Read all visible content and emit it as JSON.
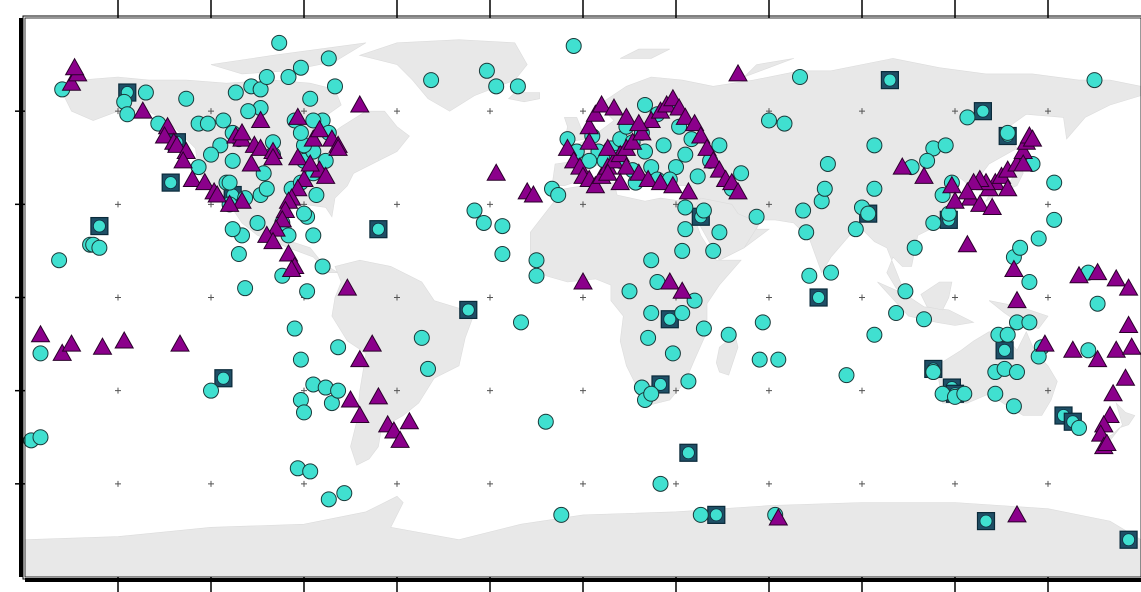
{
  "map": {
    "projection": "plate-carree",
    "lon_range": [
      -180,
      180
    ],
    "lat_range": [
      -90,
      90
    ],
    "graticule_step_deg": 30,
    "land_color": "#e8e8e8",
    "ocean_color": "#ffffff",
    "frame_color": "#000000"
  },
  "symbols": {
    "circle": {
      "fill": "#40e0d0",
      "stroke": "#1a3a3a"
    },
    "triangle": {
      "fill": "#8b008b",
      "stroke": "#2a002a"
    },
    "square": {
      "fill": "#40e0d0",
      "box_stroke": "#0a2a3a"
    }
  },
  "stations": {
    "circles": [
      [
        -148,
        63
      ],
      [
        -147,
        59
      ],
      [
        -141,
        66
      ],
      [
        -137,
        56
      ],
      [
        -128,
        64
      ],
      [
        -124,
        56
      ],
      [
        -121,
        56
      ],
      [
        -116,
        57
      ],
      [
        -112,
        66
      ],
      [
        -107,
        68
      ],
      [
        -104,
        67
      ],
      [
        -102,
        71
      ],
      [
        -98,
        82
      ],
      [
        -104,
        61
      ],
      [
        -108,
        60
      ],
      [
        -111,
        51
      ],
      [
        -113,
        53
      ],
      [
        -117,
        49
      ],
      [
        -124,
        42
      ],
      [
        -120,
        46
      ],
      [
        -91,
        74
      ],
      [
        -95,
        71
      ],
      [
        -82,
        77
      ],
      [
        -84,
        57
      ],
      [
        -90,
        44
      ],
      [
        -103,
        40
      ],
      [
        -104,
        33
      ],
      [
        -105,
        24
      ],
      [
        -97,
        24
      ],
      [
        -95,
        20
      ],
      [
        -89,
        26
      ],
      [
        -87,
        20
      ],
      [
        -113,
        44
      ],
      [
        -102,
        35
      ],
      [
        -109,
        32
      ],
      [
        -110,
        20
      ],
      [
        -114,
        30
      ],
      [
        -115,
        37
      ],
      [
        -94,
        35
      ],
      [
        -91,
        37
      ],
      [
        -87,
        47
      ],
      [
        -87,
        57
      ],
      [
        -88,
        64
      ],
      [
        -93,
        57
      ],
      [
        -90,
        49
      ],
      [
        -91,
        53
      ],
      [
        -100,
        46
      ],
      [
        -100,
        50
      ],
      [
        -80,
        68
      ],
      [
        -82,
        53
      ],
      [
        -86,
        33
      ],
      [
        -87,
        40
      ],
      [
        -83,
        44
      ],
      [
        -90,
        27
      ],
      [
        -113,
        22
      ],
      [
        -111,
        14
      ],
      [
        -109,
        3
      ],
      [
        -89,
        2
      ],
      [
        -84,
        10
      ],
      [
        -97,
        7
      ],
      [
        -93,
        -10
      ],
      [
        -91,
        -20
      ],
      [
        -87,
        -28
      ],
      [
        -83,
        -29
      ],
      [
        -81,
        -34
      ],
      [
        -79,
        -16
      ],
      [
        -79,
        -30
      ],
      [
        -91,
        -33
      ],
      [
        -90,
        -37
      ],
      [
        -92,
        -55
      ],
      [
        -88,
        -56
      ],
      [
        -82,
        -65
      ],
      [
        -77,
        -63
      ],
      [
        -52,
        -13
      ],
      [
        -50,
        -23
      ],
      [
        -169,
        12
      ],
      [
        -159,
        17
      ],
      [
        -158,
        17
      ],
      [
        -156,
        16
      ],
      [
        -178,
        -46
      ],
      [
        -175,
        -18
      ],
      [
        -168,
        67
      ],
      [
        -49,
        70
      ],
      [
        -31,
        73
      ],
      [
        -28,
        68
      ],
      [
        -21,
        68
      ],
      [
        -35,
        28
      ],
      [
        -32,
        24
      ],
      [
        -26,
        23
      ],
      [
        -26,
        14
      ],
      [
        -15,
        12
      ],
      [
        -15,
        7
      ],
      [
        -20,
        -8
      ],
      [
        -12,
        -40
      ],
      [
        -7,
        -70
      ],
      [
        -3,
        81
      ],
      [
        -5,
        51
      ],
      [
        -2,
        47
      ],
      [
        -10,
        35
      ],
      [
        -8,
        33
      ],
      [
        3,
        52
      ],
      [
        5,
        47
      ],
      [
        2,
        44
      ],
      [
        7,
        44
      ],
      [
        9,
        48
      ],
      [
        11,
        45
      ],
      [
        12,
        51
      ],
      [
        14,
        55
      ],
      [
        12,
        44
      ],
      [
        16,
        50
      ],
      [
        19,
        53
      ],
      [
        20,
        47
      ],
      [
        16,
        41
      ],
      [
        22,
        42
      ],
      [
        24,
        38
      ],
      [
        17,
        37
      ],
      [
        20,
        62
      ],
      [
        24,
        59
      ],
      [
        29,
        62
      ],
      [
        31,
        55
      ],
      [
        26,
        49
      ],
      [
        33,
        46
      ],
      [
        30,
        42
      ],
      [
        28,
        38
      ],
      [
        37,
        39
      ],
      [
        35,
        51
      ],
      [
        44,
        49
      ],
      [
        41,
        44
      ],
      [
        51,
        40
      ],
      [
        48,
        35
      ],
      [
        33,
        29
      ],
      [
        39,
        28
      ],
      [
        56,
        26
      ],
      [
        44,
        21
      ],
      [
        42,
        15
      ],
      [
        33,
        22
      ],
      [
        32,
        15
      ],
      [
        22,
        12
      ],
      [
        15,
        2
      ],
      [
        24,
        5
      ],
      [
        36,
        -1
      ],
      [
        32,
        -5
      ],
      [
        22,
        -5
      ],
      [
        21,
        -13
      ],
      [
        29,
        -18
      ],
      [
        39,
        -10
      ],
      [
        34,
        -27
      ],
      [
        19,
        -29
      ],
      [
        20,
        -33
      ],
      [
        22,
        -31
      ],
      [
        57,
        -20
      ],
      [
        47,
        -12
      ],
      [
        58,
        -8
      ],
      [
        63,
        -20
      ],
      [
        73,
        7
      ],
      [
        80,
        8
      ],
      [
        72,
        21
      ],
      [
        71,
        28
      ],
      [
        77,
        31
      ],
      [
        78,
        35
      ],
      [
        90,
        29
      ],
      [
        92,
        27
      ],
      [
        88,
        22
      ],
      [
        94,
        35
      ],
      [
        60,
        57
      ],
      [
        70,
        71
      ],
      [
        65,
        56
      ],
      [
        79,
        43
      ],
      [
        94,
        49
      ],
      [
        106,
        42
      ],
      [
        113,
        48
      ],
      [
        117,
        49
      ],
      [
        111,
        44
      ],
      [
        116,
        33
      ],
      [
        119,
        37
      ],
      [
        118,
        27
      ],
      [
        113,
        24
      ],
      [
        107,
        16
      ],
      [
        104,
        2
      ],
      [
        101,
        -5
      ],
      [
        110,
        -7
      ],
      [
        113,
        -24
      ],
      [
        116,
        -31
      ],
      [
        120,
        -32
      ],
      [
        123,
        -31
      ],
      [
        133,
        -24
      ],
      [
        136,
        -23
      ],
      [
        134,
        -12
      ],
      [
        137,
        -12
      ],
      [
        133,
        -31
      ],
      [
        140,
        -24
      ],
      [
        139,
        -35
      ],
      [
        148,
        -16
      ],
      [
        147,
        -19
      ],
      [
        140,
        -8
      ],
      [
        144,
        -8
      ],
      [
        160,
        -42
      ],
      [
        163,
        -17
      ],
      [
        163,
        8
      ],
      [
        144,
        5
      ],
      [
        139,
        13
      ],
      [
        141,
        16
      ],
      [
        147,
        19
      ],
      [
        152,
        25
      ],
      [
        166,
        -2
      ],
      [
        165,
        70
      ],
      [
        152,
        37
      ],
      [
        145,
        43
      ],
      [
        137,
        53
      ],
      [
        124,
        58
      ],
      [
        94,
        -12
      ],
      [
        85,
        -25
      ],
      [
        -175,
        -45
      ],
      [
        -120,
        -30
      ],
      [
        25,
        -60
      ],
      [
        62,
        -70
      ],
      [
        38,
        -70
      ],
      [
        -114,
        37
      ]
    ],
    "triangles": [
      [
        -165,
        69
      ],
      [
        -163,
        72
      ],
      [
        -164,
        74
      ],
      [
        -142,
        60
      ],
      [
        -134,
        55
      ],
      [
        -135,
        52
      ],
      [
        -132,
        50
      ],
      [
        -131,
        49
      ],
      [
        -128,
        47
      ],
      [
        -129,
        44
      ],
      [
        -126,
        38
      ],
      [
        -122,
        37
      ],
      [
        -119,
        34
      ],
      [
        -118,
        33
      ],
      [
        -112,
        52
      ],
      [
        -110,
        51
      ],
      [
        -106,
        49
      ],
      [
        -104,
        48
      ],
      [
        -100,
        47
      ],
      [
        -92,
        58
      ],
      [
        -87,
        51
      ],
      [
        -85,
        54
      ],
      [
        -81,
        51
      ],
      [
        -79,
        49
      ],
      [
        -85,
        41
      ],
      [
        -83,
        39
      ],
      [
        -90,
        38
      ],
      [
        -92,
        35
      ],
      [
        -94,
        32
      ],
      [
        -95,
        31
      ],
      [
        -96,
        28
      ],
      [
        -97,
        25
      ],
      [
        -99,
        22
      ],
      [
        -102,
        20
      ],
      [
        -100,
        18
      ],
      [
        -95,
        14
      ],
      [
        -93,
        10
      ],
      [
        -94,
        9
      ],
      [
        -110,
        31
      ],
      [
        -114,
        30
      ],
      [
        -79,
        48
      ],
      [
        -72,
        62
      ],
      [
        -104,
        57
      ],
      [
        -110,
        53
      ],
      [
        -100,
        45
      ],
      [
        -107,
        43
      ],
      [
        -92,
        45
      ],
      [
        -88,
        43
      ],
      [
        -76,
        3
      ],
      [
        -68,
        -15
      ],
      [
        -66,
        -32
      ],
      [
        -63,
        -41
      ],
      [
        -61,
        -43
      ],
      [
        -59,
        -46
      ],
      [
        -56,
        -40
      ],
      [
        -75,
        -33
      ],
      [
        -72,
        -38
      ],
      [
        -72,
        -20
      ],
      [
        -28,
        40
      ],
      [
        -18,
        34
      ],
      [
        -16,
        33
      ],
      [
        -5,
        48
      ],
      [
        -3,
        44
      ],
      [
        -1,
        42
      ],
      [
        0,
        39
      ],
      [
        2,
        38
      ],
      [
        4,
        36
      ],
      [
        6,
        39
      ],
      [
        8,
        42
      ],
      [
        10,
        44
      ],
      [
        12,
        46
      ],
      [
        14,
        48
      ],
      [
        16,
        50
      ],
      [
        19,
        53
      ],
      [
        22,
        57
      ],
      [
        25,
        60
      ],
      [
        27,
        62
      ],
      [
        29,
        64
      ],
      [
        31,
        61
      ],
      [
        33,
        58
      ],
      [
        36,
        56
      ],
      [
        38,
        52
      ],
      [
        40,
        48
      ],
      [
        42,
        44
      ],
      [
        44,
        41
      ],
      [
        46,
        38
      ],
      [
        48,
        37
      ],
      [
        50,
        34
      ],
      [
        14,
        42
      ],
      [
        18,
        40
      ],
      [
        21,
        38
      ],
      [
        25,
        37
      ],
      [
        29,
        36
      ],
      [
        34,
        34
      ],
      [
        12,
        37
      ],
      [
        8,
        40
      ],
      [
        2,
        55
      ],
      [
        4,
        59
      ],
      [
        6,
        62
      ],
      [
        10,
        61
      ],
      [
        14,
        58
      ],
      [
        18,
        56
      ],
      [
        2,
        50
      ],
      [
        8,
        48
      ],
      [
        50,
        72
      ],
      [
        0,
        5
      ],
      [
        28,
        5
      ],
      [
        32,
        2
      ],
      [
        103,
        42
      ],
      [
        110,
        39
      ],
      [
        119,
        36
      ],
      [
        125,
        32
      ],
      [
        128,
        30
      ],
      [
        131,
        35
      ],
      [
        133,
        37
      ],
      [
        135,
        39
      ],
      [
        137,
        41
      ],
      [
        140,
        43
      ],
      [
        142,
        47
      ],
      [
        143,
        50
      ],
      [
        144,
        52
      ],
      [
        145,
        51
      ],
      [
        142,
        43
      ],
      [
        137,
        35
      ],
      [
        132,
        29
      ],
      [
        130,
        37
      ],
      [
        128,
        38
      ],
      [
        126,
        37
      ],
      [
        124,
        34
      ],
      [
        120,
        31
      ],
      [
        124,
        17
      ],
      [
        139,
        9
      ],
      [
        160,
        7
      ],
      [
        166,
        8
      ],
      [
        172,
        6
      ],
      [
        176,
        3
      ],
      [
        140,
        -1
      ],
      [
        149,
        -15
      ],
      [
        158,
        -17
      ],
      [
        166,
        -20
      ],
      [
        172,
        -17
      ],
      [
        176,
        -9
      ],
      [
        177,
        -16
      ],
      [
        175,
        -26
      ],
      [
        171,
        -31
      ],
      [
        170,
        -38
      ],
      [
        168,
        -41
      ],
      [
        167,
        -44
      ],
      [
        168,
        -48
      ],
      [
        169,
        -47
      ],
      [
        -175,
        -12
      ],
      [
        -168,
        -18
      ],
      [
        -165,
        -15
      ],
      [
        -155,
        -16
      ],
      [
        -130,
        -15
      ],
      [
        -148,
        -14
      ],
      [
        140,
        -70
      ],
      [
        63,
        -71
      ]
    ],
    "squares": [
      [
        -147,
        66
      ],
      [
        -131,
        50
      ],
      [
        -113,
        33
      ],
      [
        -133,
        37
      ],
      [
        -156,
        23
      ],
      [
        -116,
        -26
      ],
      [
        -66,
        22
      ],
      [
        -37,
        -4
      ],
      [
        38,
        26
      ],
      [
        25,
        -28
      ],
      [
        92,
        27
      ],
      [
        28,
        -7
      ],
      [
        76,
        0
      ],
      [
        34,
        -50
      ],
      [
        43,
        -70
      ],
      [
        99,
        70
      ],
      [
        129,
        60
      ],
      [
        137,
        52
      ],
      [
        136,
        -17
      ],
      [
        155,
        -38
      ],
      [
        158,
        -40
      ],
      [
        130,
        -72
      ],
      [
        119,
        -29
      ],
      [
        120,
        -31
      ],
      [
        176,
        -78
      ],
      [
        118,
        25
      ],
      [
        113,
        -23
      ]
    ]
  }
}
